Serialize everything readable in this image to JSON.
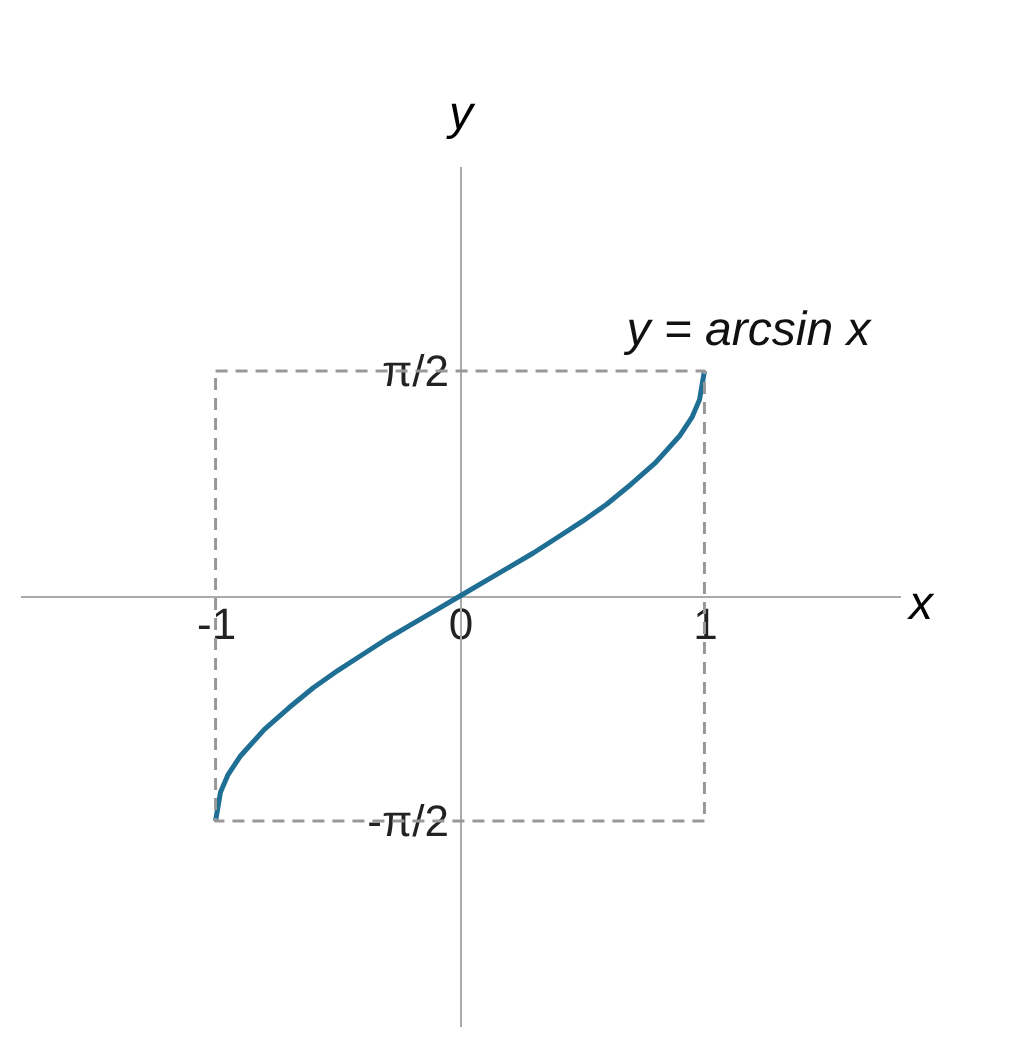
{
  "chart_data": {
    "type": "line",
    "xlabel": "x",
    "ylabel": "y",
    "xlim": [
      -1.8,
      1.8
    ],
    "ylim": [
      -3,
      3
    ],
    "xticks": [
      -1,
      0,
      1
    ],
    "yticks": [
      {
        "value": -1.5708,
        "label": "-π/2"
      },
      {
        "value": 1.5708,
        "label": "π/2"
      }
    ],
    "grid": false,
    "marker": "none",
    "annotations": [
      {
        "text": "y = arcsin x",
        "x": 1,
        "y": 1.5708
      }
    ],
    "series": [
      {
        "color": "#1f6e94",
        "line_style": "solid",
        "x": [
          -1,
          -0.98,
          -0.95,
          -0.9,
          -0.8,
          -0.7,
          -0.6,
          -0.5,
          -0.4,
          -0.3,
          -0.2,
          -0.1,
          0,
          0.1,
          0.2,
          0.3,
          0.4,
          0.5,
          0.6,
          0.7,
          0.8,
          0.9,
          0.95,
          0.98,
          1
        ],
        "values": [
          -1.57,
          -1.37,
          -1.25,
          -1.12,
          -0.93,
          -0.78,
          -0.64,
          -0.52,
          -0.41,
          -0.3,
          -0.2,
          -0.1,
          0,
          0.1,
          0.2,
          0.3,
          0.41,
          0.52,
          0.64,
          0.78,
          0.93,
          1.12,
          1.25,
          1.37,
          1.57
        ]
      },
      {
        "color": "#999999",
        "line_style": "dashed",
        "x": [
          -1,
          1,
          1
        ],
        "values": [
          1.57,
          1.57,
          -1.57
        ]
      },
      {
        "color": "#999999",
        "line_style": "dashed",
        "x": [
          1,
          -1,
          -1
        ],
        "values": [
          -1.57,
          -1.57,
          1.57
        ]
      }
    ]
  }
}
